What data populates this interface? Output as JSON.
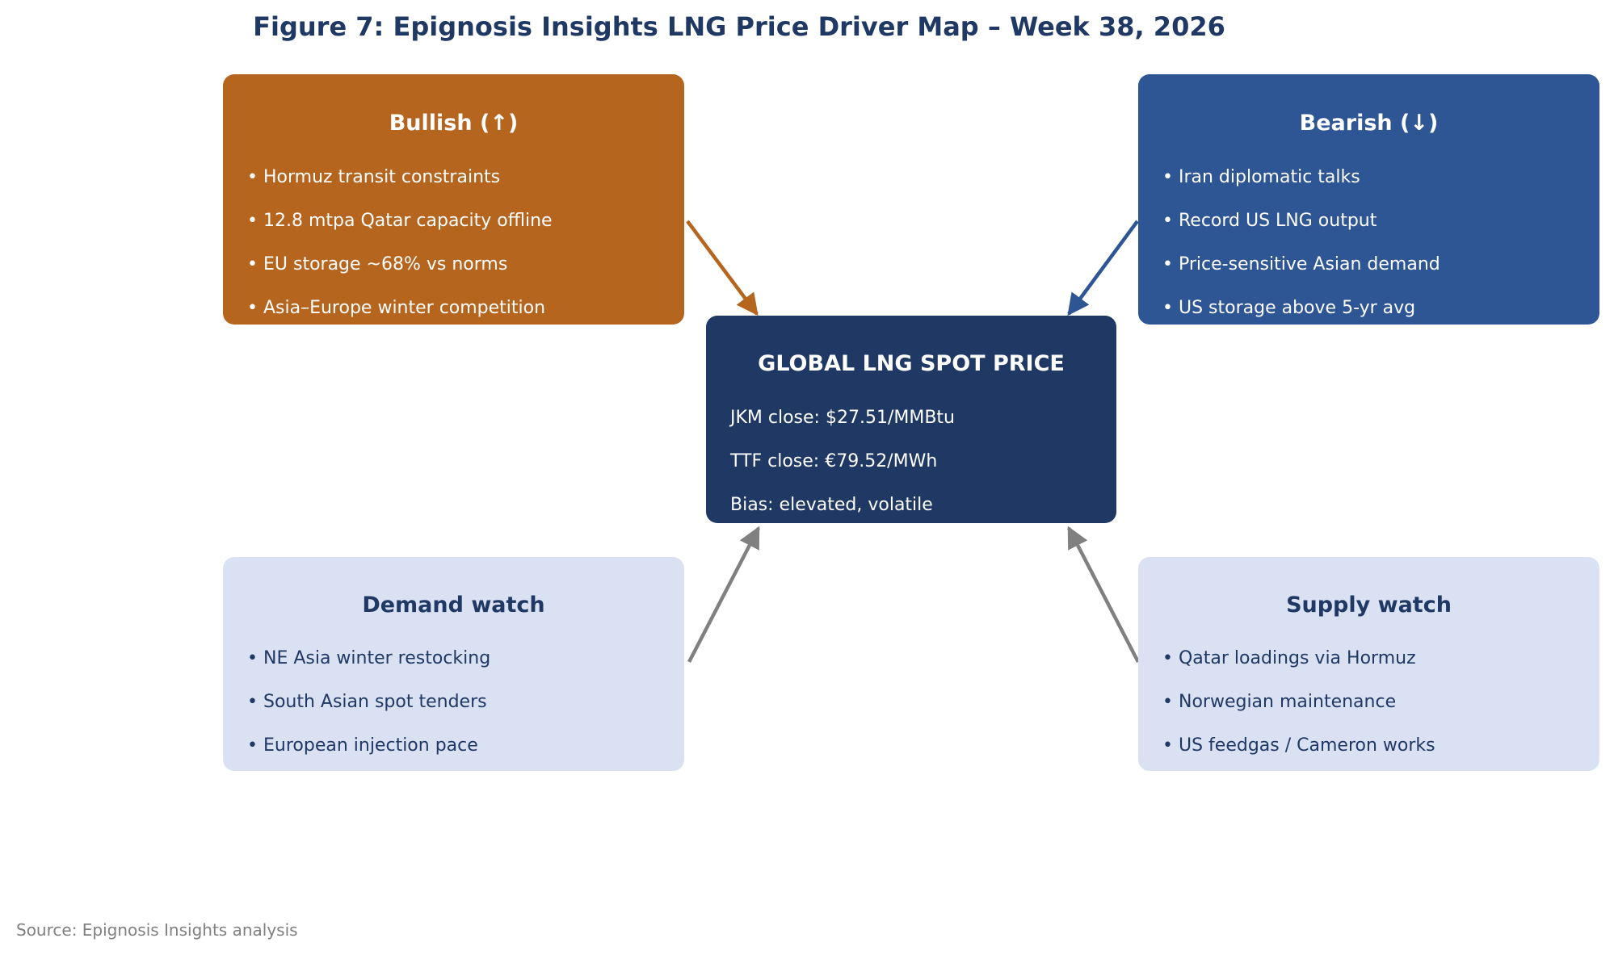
{
  "title": "Figure 7: Epignosis Insights LNG Price Driver Map – Week 38, 2026",
  "bullish": {
    "title": "Bullish (↑)",
    "items": [
      "Hormuz transit constraints",
      "12.8 mtpa Qatar capacity offline",
      "EU storage ~68% vs norms",
      "Asia–Europe winter competition"
    ]
  },
  "bearish": {
    "title": "Bearish (↓)",
    "items": [
      "Iran diplomatic talks",
      "Record US LNG output",
      "Price-sensitive Asian demand",
      "US storage above 5-yr avg"
    ]
  },
  "center": {
    "title": "GLOBAL LNG SPOT PRICE",
    "items": [
      "JKM close: $27.51/MMBtu",
      "TTF close: €79.52/MWh",
      "Bias: elevated, volatile"
    ]
  },
  "demand": {
    "title": "Demand watch",
    "items": [
      "NE Asia winter restocking",
      "South Asian spot tenders",
      "European injection pace"
    ]
  },
  "supply": {
    "title": "Supply watch",
    "items": [
      "Qatar loadings via Hormuz",
      "Norwegian maintenance",
      "US feedgas / Cameron works"
    ]
  },
  "source": "Source: Epignosis Insights analysis",
  "colors": {
    "bullish": "#b5651d",
    "bearish": "#2e5594",
    "center": "#1f3864",
    "watch": "#dae1f2",
    "watch_arrow": "#808080"
  }
}
